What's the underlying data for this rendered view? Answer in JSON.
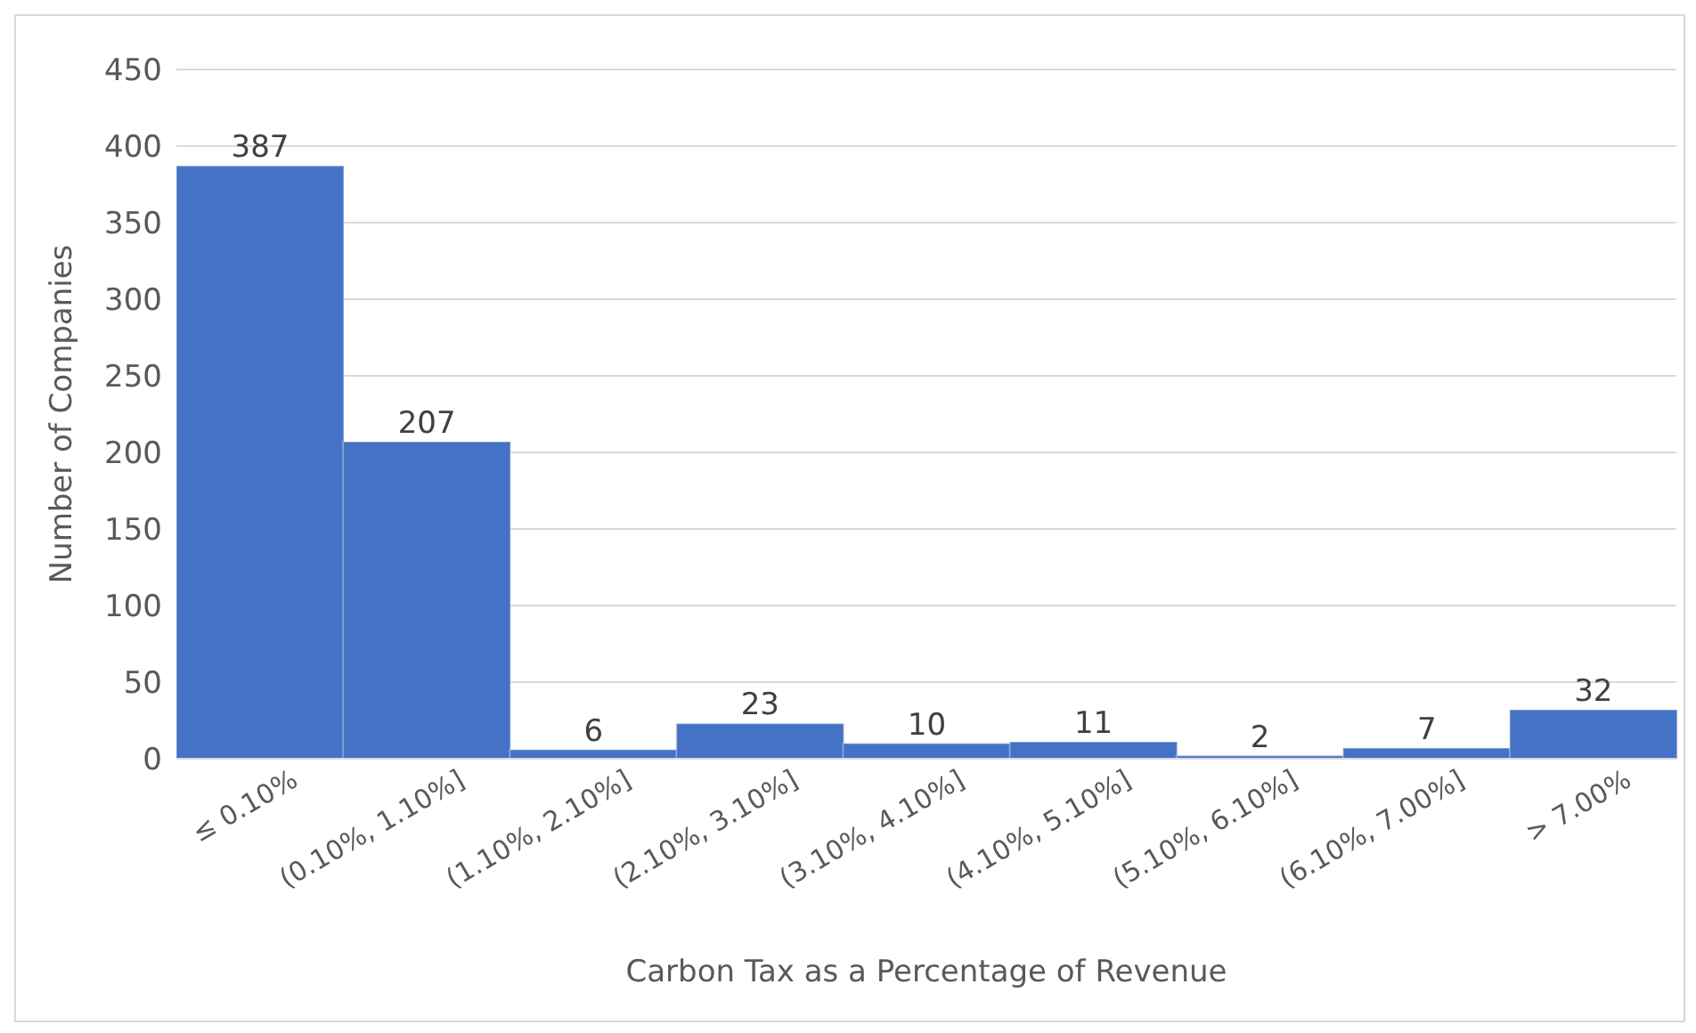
{
  "chart_data": {
    "type": "bar",
    "xlabel": "Carbon Tax as a Percentage of Revenue",
    "ylabel": "Number of Companies",
    "categories": [
      "≤ 0.10%",
      "(0.10%, 1.10%]",
      "(1.10%, 2.10%]",
      "(2.10%, 3.10%]",
      "(3.10%, 4.10%]",
      "(4.10%, 5.10%]",
      "(5.10%, 6.10%]",
      "(6.10%, 7.00%]",
      "> 7.00%"
    ],
    "values": [
      387,
      207,
      6,
      23,
      10,
      11,
      2,
      7,
      32
    ],
    "color": "#4472c4",
    "ylim": [
      0,
      450
    ],
    "yticks": [
      0,
      50,
      100,
      150,
      200,
      250,
      300,
      350,
      400,
      450
    ],
    "grid": "y",
    "data_labels": true
  }
}
